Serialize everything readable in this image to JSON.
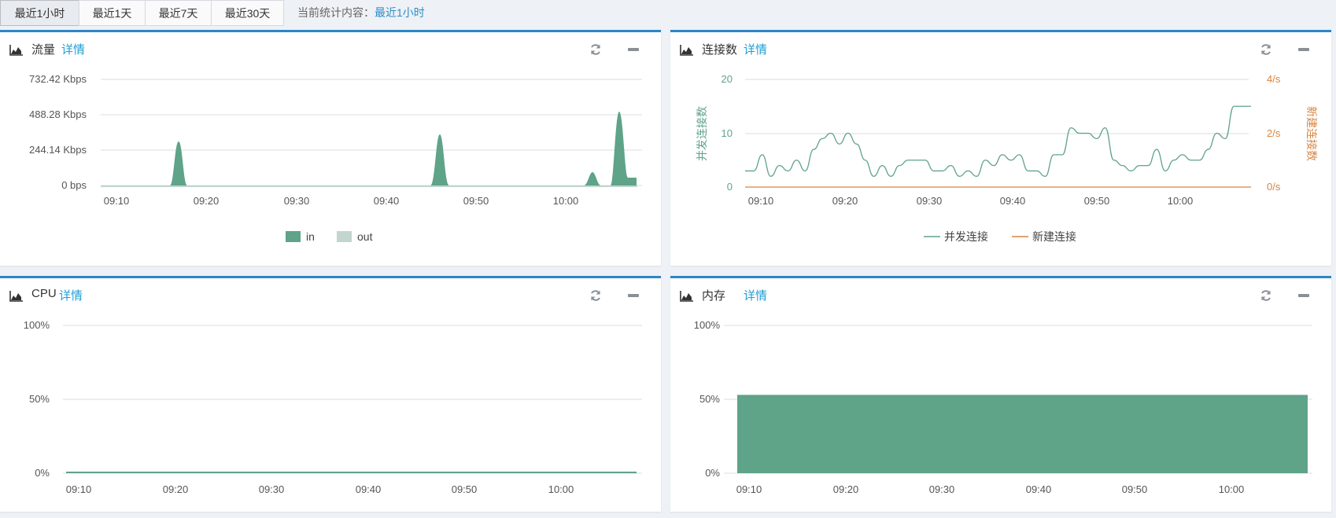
{
  "tabs": [
    "最近1小时",
    "最近1天",
    "最近7天",
    "最近30天"
  ],
  "stat_label": "当前统计内容：",
  "stat_current": "最近1小时",
  "panels": {
    "traffic": {
      "title": "流量",
      "detail": "详情",
      "chart_data": {
        "type": "area",
        "x_ticks": [
          "09:10",
          "09:20",
          "09:30",
          "09:40",
          "09:50",
          "10:00"
        ],
        "y_ticks": [
          "0 bps",
          "244.14 Kbps",
          "488.28 Kbps",
          "732.42 Kbps"
        ],
        "series": [
          {
            "name": "in",
            "color": "#5fa389",
            "points": [
              [
                "09:17",
                300
              ],
              [
                "09:46",
                340
              ],
              [
                "10:03",
                90
              ],
              [
                "10:06",
                510
              ],
              [
                "10:07",
                50
              ]
            ]
          },
          {
            "name": "out",
            "color": "#c2d6cf",
            "points": []
          }
        ]
      }
    },
    "connections": {
      "title": "连接数",
      "detail": "详情",
      "chart_data": {
        "type": "line",
        "x_ticks": [
          "09:10",
          "09:20",
          "09:30",
          "09:40",
          "09:50",
          "10:00"
        ],
        "y_left_ticks": [
          "0",
          "10",
          "20"
        ],
        "y_right_ticks": [
          "0/s",
          "2/s",
          "4/s"
        ],
        "y_left_label": "并发连接数",
        "y_right_label": "新建连接数",
        "ylim_left": [
          0,
          20
        ],
        "series": [
          {
            "name": "并发连接",
            "color": "#5fa389",
            "values": [
              3,
              3,
              6,
              2,
              4,
              3,
              5,
              3,
              7,
              9,
              10,
              8,
              10,
              8,
              5,
              2,
              4,
              2,
              4,
              5,
              5,
              5,
              3,
              3,
              4,
              2,
              3,
              2,
              5,
              4,
              6,
              5,
              6,
              3,
              3,
              2,
              6,
              6,
              11,
              10,
              10,
              9,
              11,
              5,
              4,
              3,
              4,
              4,
              7,
              3,
              5,
              6,
              5,
              5,
              7,
              10,
              9,
              15,
              15,
              15
            ]
          },
          {
            "name": "新建连接",
            "color": "#d9843f",
            "values": [
              0,
              0,
              0,
              0,
              0,
              0,
              0,
              0,
              0,
              0,
              0,
              0,
              0,
              0,
              0,
              0,
              0,
              0,
              0,
              0,
              0,
              0,
              0,
              0,
              0,
              0,
              0,
              0,
              0,
              0,
              0,
              0,
              0,
              0,
              0,
              0,
              0,
              0,
              0,
              0,
              0,
              0,
              0,
              0,
              0,
              0,
              0,
              0,
              0,
              0,
              0,
              0,
              0,
              0,
              0,
              0,
              0,
              0,
              0,
              0
            ]
          }
        ]
      }
    },
    "cpu": {
      "title": "CPU",
      "detail": "详情",
      "chart_data": {
        "type": "area",
        "x_ticks": [
          "09:10",
          "09:20",
          "09:30",
          "09:40",
          "09:50",
          "10:00"
        ],
        "y_ticks": [
          "0%",
          "50%",
          "100%"
        ],
        "ylim": [
          0,
          100
        ],
        "series": [
          {
            "name": "CPU",
            "color": "#5fa389",
            "value": 1
          }
        ]
      }
    },
    "memory": {
      "title": "内存",
      "detail": "详情",
      "chart_data": {
        "type": "area",
        "x_ticks": [
          "09:10",
          "09:20",
          "09:30",
          "09:40",
          "09:50",
          "10:00"
        ],
        "y_ticks": [
          "0%",
          "50%",
          "100%"
        ],
        "ylim": [
          0,
          100
        ],
        "series": [
          {
            "name": "内存",
            "color": "#5fa389",
            "value": 53
          }
        ]
      }
    }
  }
}
